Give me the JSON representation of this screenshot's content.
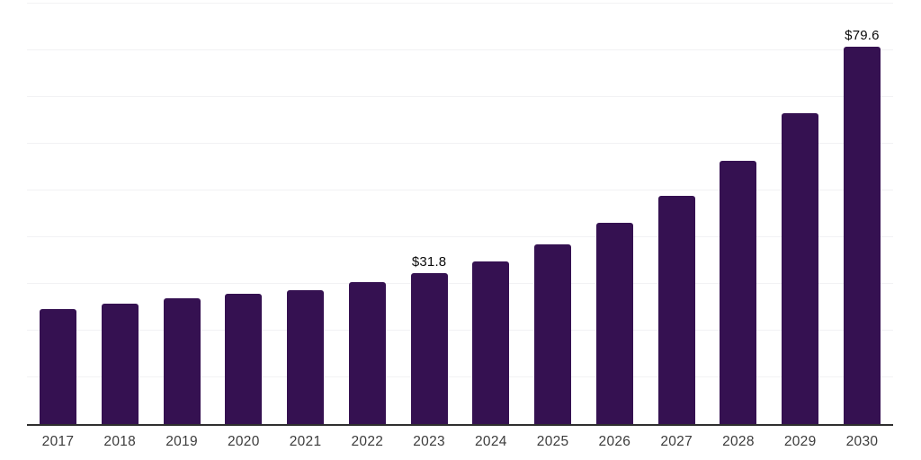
{
  "chart_data": {
    "type": "bar",
    "title": "",
    "xlabel": "",
    "ylabel": "",
    "categories": [
      "2017",
      "2018",
      "2019",
      "2020",
      "2021",
      "2022",
      "2023",
      "2024",
      "2025",
      "2026",
      "2027",
      "2028",
      "2029",
      "2030"
    ],
    "values": [
      24.3,
      25.3,
      26.5,
      27.4,
      28.3,
      30.0,
      31.8,
      34.2,
      37.9,
      42.4,
      48.2,
      55.5,
      65.5,
      79.6
    ],
    "data_labels": {
      "2023": "$31.8",
      "2030": "$79.6"
    },
    "ylim": [
      0,
      90
    ],
    "grid_step": 10,
    "grid": true,
    "legend": false,
    "colors": {
      "bar": "#351151",
      "axis_line": "#2f2f2f",
      "gridline": "#f2f2f4",
      "tick_label": "#3c3c3c",
      "value_label": "#0a0a0a",
      "background": "#ffffff"
    }
  }
}
